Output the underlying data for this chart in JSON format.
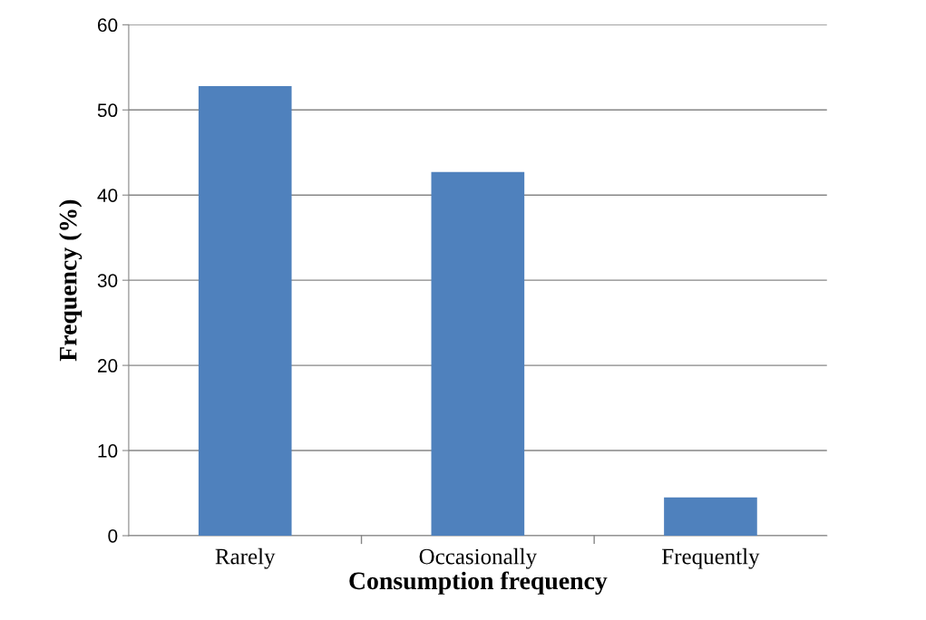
{
  "chart_data": {
    "type": "bar",
    "xlabel": "Consumption frequency",
    "ylabel": "Frequency (%)",
    "categories": [
      "Rarely",
      "Occasionally",
      "Frequently"
    ],
    "values": [
      52.8,
      42.7,
      4.5
    ],
    "color": "#4f81bd",
    "ylim": [
      0,
      60
    ],
    "yticks": [
      0,
      10,
      20,
      30,
      40,
      50,
      60
    ],
    "grid": "y"
  }
}
